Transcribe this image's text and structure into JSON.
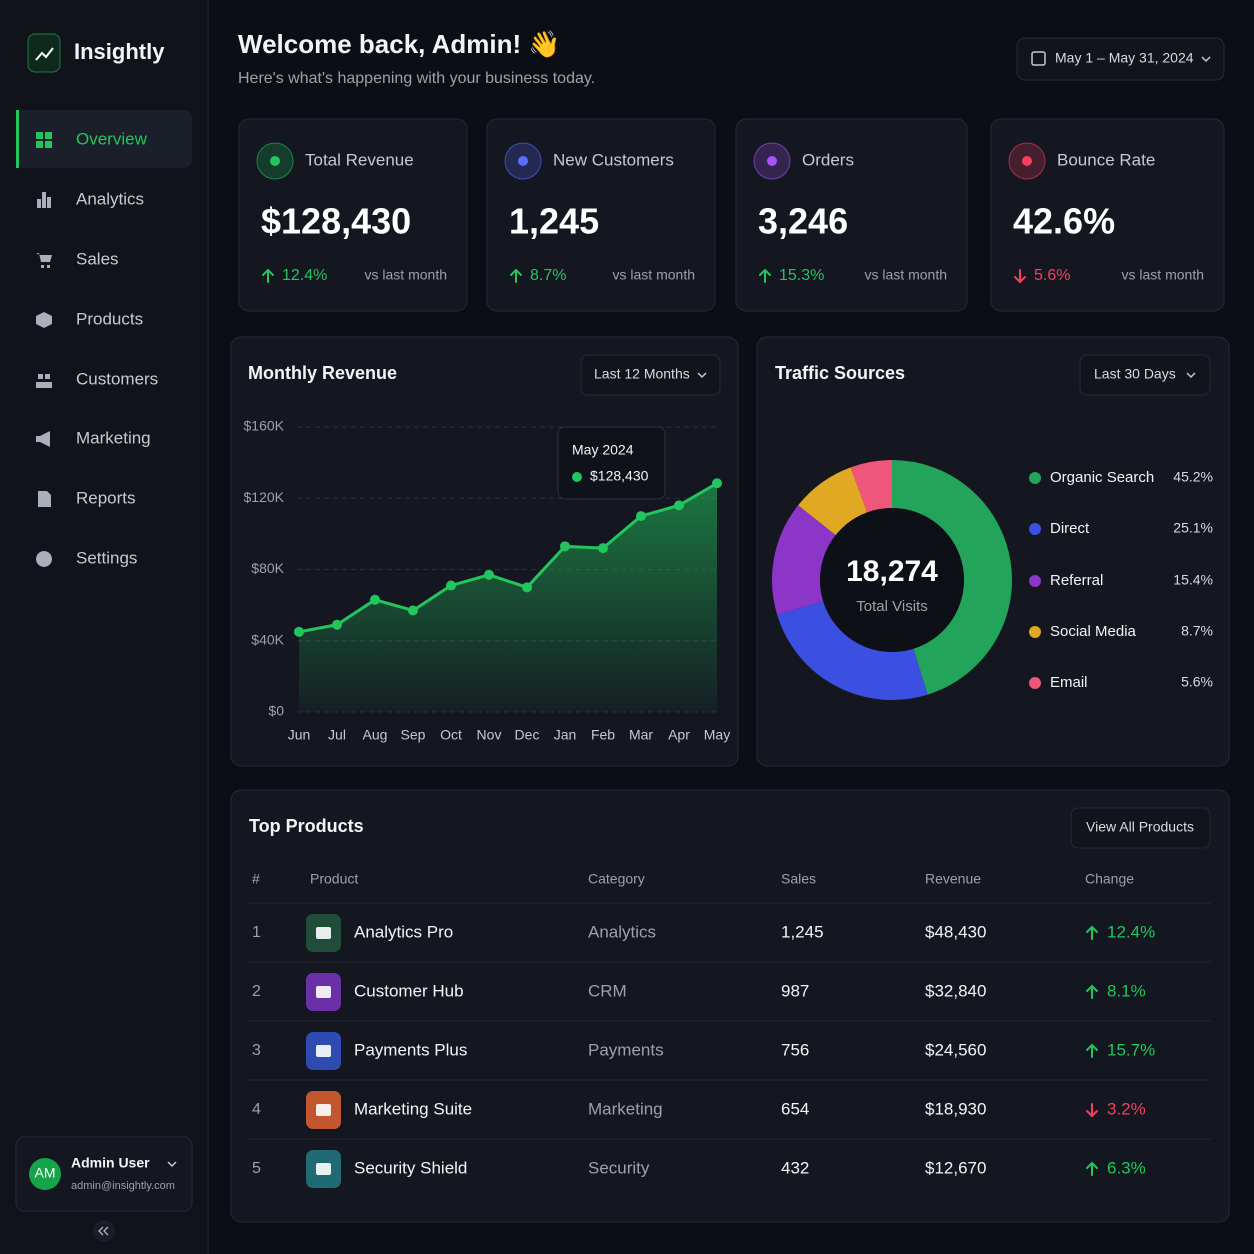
{
  "sidebar": {
    "brand": "Insightly",
    "nav": [
      "Overview",
      "Analytics",
      "Sales",
      "Products",
      "Customers",
      "Marketing",
      "Reports",
      "Settings"
    ],
    "user": {
      "initials": "AM",
      "name": "Admin User",
      "email": "admin@insightly.com"
    }
  },
  "header": {
    "title": "Welcome back, Admin! 👋",
    "subtitle": "Here's what's happening with your business today.",
    "date_range": "May 1 – May 31, 2024"
  },
  "kpis": [
    {
      "label": "Total Revenue",
      "value": "$128,430",
      "change": "12.4%",
      "trend": "up",
      "note": "vs last month",
      "color": "#22c55e"
    },
    {
      "label": "New Customers",
      "value": "1,245",
      "change": "8.7%",
      "trend": "up",
      "note": "vs last month",
      "color": "#5b6cff"
    },
    {
      "label": "Orders",
      "value": "3,246",
      "change": "15.3%",
      "trend": "up",
      "note": "vs last month",
      "color": "#a855f7"
    },
    {
      "label": "Bounce Rate",
      "value": "42.6%",
      "change": "5.6%",
      "trend": "down",
      "note": "vs last month",
      "color": "#f43f5e"
    }
  ],
  "revenue_chart": {
    "type": "line",
    "title": "Monthly Revenue",
    "filter": "Last 12 Months",
    "categories": [
      "Jun",
      "Jul",
      "Aug",
      "Sep",
      "Oct",
      "Nov",
      "Dec",
      "Jan",
      "Feb",
      "Mar",
      "Apr",
      "May"
    ],
    "values": [
      45000,
      49000,
      63000,
      57000,
      71000,
      77000,
      70000,
      93000,
      92000,
      110000,
      116000,
      128430
    ],
    "color": "#22c55e",
    "ylim": [
      0,
      160000
    ],
    "yticks": [
      {
        "value": 0,
        "label": "$0"
      },
      {
        "value": 40000,
        "label": "$40K"
      },
      {
        "value": 80000,
        "label": "$80K"
      },
      {
        "value": 120000,
        "label": "$120K"
      },
      {
        "value": 160000,
        "label": "$160K"
      }
    ],
    "grid": true,
    "tooltip": {
      "label": "May 2024",
      "value": "$128,430"
    }
  },
  "traffic_chart": {
    "type": "pie",
    "title": "Traffic Sources",
    "filter": "Last 30 Days",
    "total": "18,274",
    "total_label": "Total Visits",
    "categories": [
      "Organic Search",
      "Direct",
      "Referral",
      "Social Media",
      "Email"
    ],
    "values": [
      45.2,
      25.1,
      15.4,
      8.7,
      5.6
    ],
    "value_labels": [
      "45.2%",
      "25.1%",
      "15.4%",
      "8.7%",
      "5.6%"
    ],
    "colors": [
      "#22a55a",
      "#3b4fe0",
      "#8b35c9",
      "#e0a823",
      "#f0557a"
    ]
  },
  "products": {
    "title": "Top Products",
    "button": "View All Products",
    "columns": [
      "#",
      "Product",
      "Category",
      "Sales",
      "Revenue",
      "Change"
    ],
    "rows": [
      [
        "1",
        "Analytics Pro",
        "Analytics",
        "1,245",
        "$48,430",
        "12.4%"
      ],
      [
        "2",
        "Customer Hub",
        "CRM",
        "987",
        "$32,840",
        "8.1%"
      ],
      [
        "3",
        "Payments Plus",
        "Payments",
        "756",
        "$24,560",
        "15.7%"
      ],
      [
        "4",
        "Marketing Suite",
        "Marketing",
        "654",
        "$18,930",
        "3.2%"
      ],
      [
        "5",
        "Security Shield",
        "Security",
        "432",
        "$12,670",
        "6.3%"
      ]
    ],
    "trends": [
      "up",
      "up",
      "up",
      "down",
      "up"
    ],
    "icon_colors": [
      "#1f4d3a",
      "#6b2fa8",
      "#2d4bb0",
      "#c2562e",
      "#1f6a73"
    ]
  }
}
